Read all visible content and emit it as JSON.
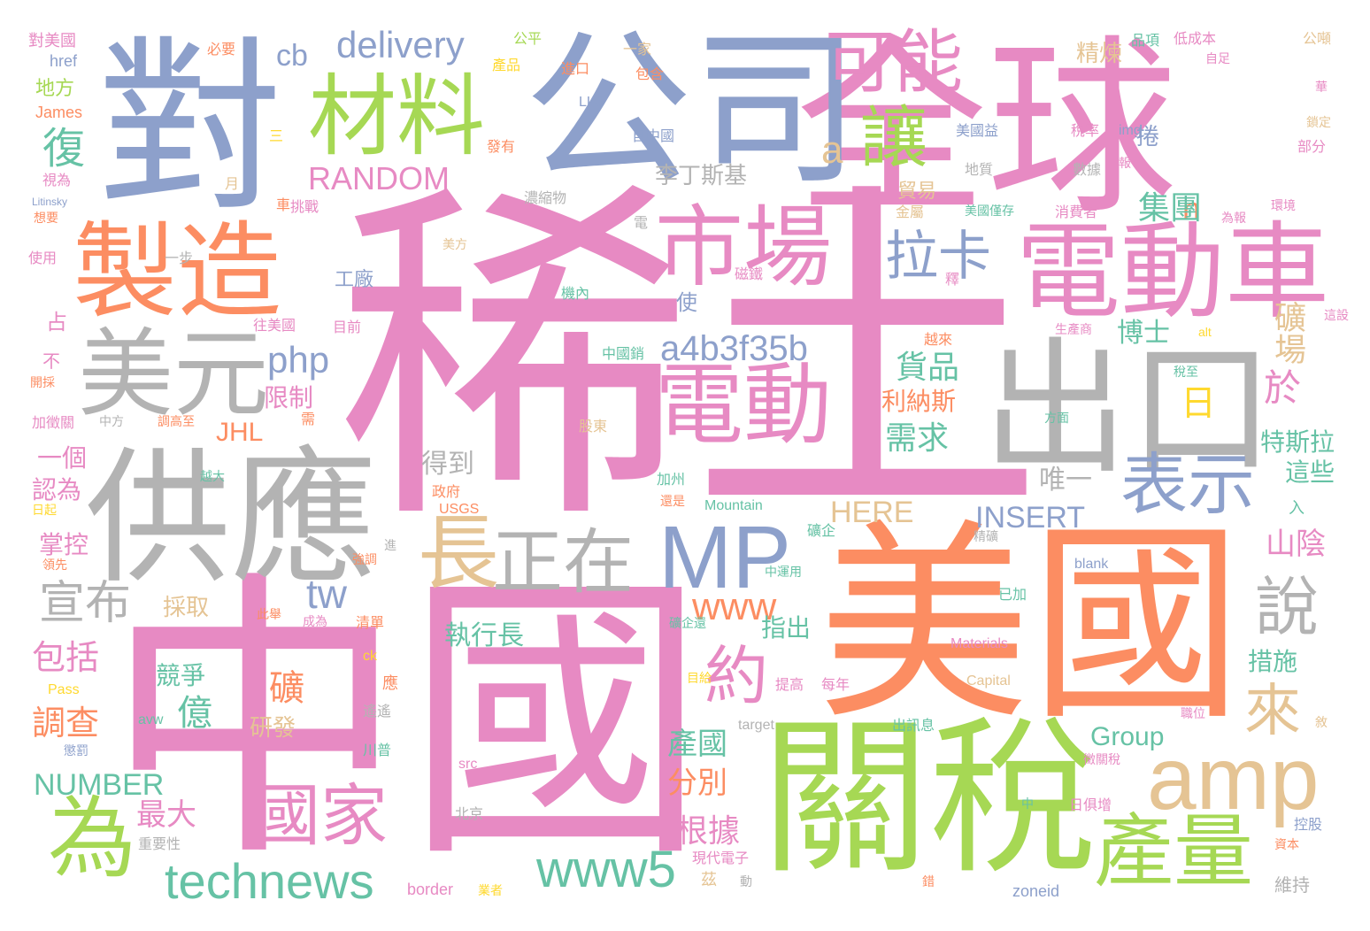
{
  "palette": {
    "pink": "#e78ac3",
    "orange": "#fc8d62",
    "green": "#a6d854",
    "blue": "#8da0cb",
    "gray": "#b3b3b3",
    "teal": "#66c2a5",
    "tan": "#e5c494",
    "yellow": "#ffd92f"
  },
  "words": [
    {
      "text": "稀土",
      "color": "#e78ac3"
    },
    {
      "text": "中國",
      "color": "#e78ac3"
    },
    {
      "text": "美國",
      "color": "#fc8d62"
    },
    {
      "text": "全球",
      "color": "#e78ac3"
    },
    {
      "text": "對",
      "color": "#8da0cb"
    },
    {
      "text": "公司",
      "color": "#8da0cb"
    },
    {
      "text": "供應",
      "color": "#b3b3b3"
    },
    {
      "text": "出口",
      "color": "#b3b3b3"
    },
    {
      "text": "關稅",
      "color": "#a6d854"
    },
    {
      "text": "製造",
      "color": "#fc8d62"
    },
    {
      "text": "電動車",
      "color": "#e78ac3"
    },
    {
      "text": "材料",
      "color": "#a6d854"
    },
    {
      "text": "美元",
      "color": "#b3b3b3"
    },
    {
      "text": "市場",
      "color": "#e78ac3"
    },
    {
      "text": "電動",
      "color": "#e78ac3"
    },
    {
      "text": "可能",
      "color": "#e78ac3"
    },
    {
      "text": "MP",
      "color": "#8da0cb"
    },
    {
      "text": "amp",
      "color": "#e5c494"
    },
    {
      "text": "產量",
      "color": "#a6d854"
    },
    {
      "text": "為",
      "color": "#a6d854"
    },
    {
      "text": "國家",
      "color": "#e78ac3"
    },
    {
      "text": "表示",
      "color": "#8da0cb"
    },
    {
      "text": "正在",
      "color": "#b3b3b3"
    },
    {
      "text": "長",
      "color": "#e5c494"
    },
    {
      "text": "technews",
      "color": "#66c2a5"
    },
    {
      "text": "www5",
      "color": "#66c2a5"
    },
    {
      "text": "約",
      "color": "#e78ac3"
    },
    {
      "text": "讓",
      "color": "#a6d854"
    },
    {
      "text": "拉卡",
      "color": "#8da0cb"
    },
    {
      "text": "delivery",
      "color": "#8da0cb"
    },
    {
      "text": "說",
      "color": "#b3b3b3"
    },
    {
      "text": "來",
      "color": "#e5c494"
    },
    {
      "text": "宣布",
      "color": "#b3b3b3"
    },
    {
      "text": "www",
      "color": "#fc8d62"
    },
    {
      "text": "a4b3f35b",
      "color": "#8da0cb"
    },
    {
      "text": "php",
      "color": "#8da0cb"
    },
    {
      "text": "RANDOM",
      "color": "#e78ac3"
    },
    {
      "text": "NUMBER",
      "color": "#66c2a5"
    },
    {
      "text": "INSERT",
      "color": "#8da0cb"
    },
    {
      "text": "HERE",
      "color": "#e5c494"
    },
    {
      "text": "tw",
      "color": "#8da0cb"
    },
    {
      "text": "a",
      "color": "#e5c494"
    },
    {
      "text": "cb",
      "color": "#8da0cb"
    },
    {
      "text": "復",
      "color": "#66c2a5"
    },
    {
      "text": "日",
      "color": "#ffd92f"
    },
    {
      "text": "n",
      "color": "#fc8d62"
    },
    {
      "text": "集團",
      "color": "#66c2a5"
    },
    {
      "text": "礦場",
      "color": "#e5c494"
    },
    {
      "text": "於",
      "color": "#e78ac3"
    },
    {
      "text": "貨品",
      "color": "#66c2a5"
    },
    {
      "text": "需求",
      "color": "#66c2a5"
    },
    {
      "text": "Group",
      "color": "#66c2a5"
    },
    {
      "text": "包括",
      "color": "#e78ac3"
    },
    {
      "text": "調查",
      "color": "#fc8d62"
    },
    {
      "text": "產國",
      "color": "#66c2a5"
    },
    {
      "text": "分別",
      "color": "#fc8d62"
    },
    {
      "text": "根據",
      "color": "#e78ac3"
    },
    {
      "text": "最大",
      "color": "#e78ac3"
    },
    {
      "text": "億",
      "color": "#66c2a5"
    },
    {
      "text": "礦",
      "color": "#fc8d62"
    },
    {
      "text": "JHL",
      "color": "#fc8d62"
    },
    {
      "text": "山陰",
      "color": "#e78ac3"
    },
    {
      "text": "特斯拉",
      "color": "#66c2a5"
    },
    {
      "text": "博士",
      "color": "#66c2a5"
    },
    {
      "text": "唯一",
      "color": "#b3b3b3"
    },
    {
      "text": "執行長",
      "color": "#66c2a5"
    },
    {
      "text": "得到",
      "color": "#b3b3b3"
    },
    {
      "text": "利納斯",
      "color": "#fc8d62"
    },
    {
      "text": "限制",
      "color": "#e78ac3"
    },
    {
      "text": "一個",
      "color": "#e78ac3"
    },
    {
      "text": "認為",
      "color": "#e78ac3"
    },
    {
      "text": "掌控",
      "color": "#e78ac3"
    },
    {
      "text": "採取",
      "color": "#e5c494"
    },
    {
      "text": "指出",
      "color": "#66c2a5"
    },
    {
      "text": "措施",
      "color": "#66c2a5"
    },
    {
      "text": "這些",
      "color": "#66c2a5"
    },
    {
      "text": "競爭",
      "color": "#66c2a5"
    },
    {
      "text": "研發",
      "color": "#e5c494"
    },
    {
      "text": "精煉",
      "color": "#e5c494"
    },
    {
      "text": "李丁斯基",
      "color": "#b3b3b3"
    },
    {
      "text": "工廠",
      "color": "#8da0cb"
    },
    {
      "text": "貿易",
      "color": "#e5c494"
    },
    {
      "text": "捲",
      "color": "#8da0cb"
    },
    {
      "text": "地方",
      "color": "#a6d854"
    },
    {
      "text": "James",
      "color": "#fc8d62"
    },
    {
      "text": "href",
      "color": "#8da0cb"
    },
    {
      "text": "對美國",
      "color": "#e78ac3"
    },
    {
      "text": "必要",
      "color": "#fc8d62"
    },
    {
      "text": "公平",
      "color": "#a6d854"
    },
    {
      "text": "產品",
      "color": "#ffd92f"
    },
    {
      "text": "進口",
      "color": "#fc8d62"
    },
    {
      "text": "一家",
      "color": "#e5c494"
    },
    {
      "text": "包含",
      "color": "#fc8d62"
    },
    {
      "text": "品項",
      "color": "#66c2a5"
    },
    {
      "text": "低成本",
      "color": "#e78ac3"
    },
    {
      "text": "公噸",
      "color": "#e5c494"
    },
    {
      "text": "自足",
      "color": "#e78ac3"
    },
    {
      "text": "LLC",
      "color": "#8da0cb"
    },
    {
      "text": "自中國",
      "color": "#8da0cb"
    },
    {
      "text": "發有",
      "color": "#fc8d62"
    },
    {
      "text": "美國益",
      "color": "#8da0cb"
    },
    {
      "text": "稅率",
      "color": "#e78ac3"
    },
    {
      "text": "img",
      "color": "#8da0cb"
    },
    {
      "text": "地質",
      "color": "#b3b3b3"
    },
    {
      "text": "數據",
      "color": "#b3b3b3"
    },
    {
      "text": "報",
      "color": "#e78ac3"
    },
    {
      "text": "部分",
      "color": "#e78ac3"
    },
    {
      "text": "鎖定",
      "color": "#e5c494"
    },
    {
      "text": "華",
      "color": "#e78ac3"
    },
    {
      "text": "環境",
      "color": "#e78ac3"
    },
    {
      "text": "為報",
      "color": "#e78ac3"
    },
    {
      "text": "濃縮物",
      "color": "#b3b3b3"
    },
    {
      "text": "挑戰",
      "color": "#e78ac3"
    },
    {
      "text": "美國僅存",
      "color": "#66c2a5"
    },
    {
      "text": "消費者",
      "color": "#e78ac3"
    },
    {
      "text": "金屬",
      "color": "#e5c494"
    },
    {
      "text": "美方",
      "color": "#e5c494"
    },
    {
      "text": "車",
      "color": "#fc8d62"
    },
    {
      "text": "電",
      "color": "#b3b3b3"
    },
    {
      "text": "一步",
      "color": "#b3b3b3"
    },
    {
      "text": "磁鐵",
      "color": "#e78ac3"
    },
    {
      "text": "釋",
      "color": "#e78ac3"
    },
    {
      "text": "機內",
      "color": "#66c2a5"
    },
    {
      "text": "使",
      "color": "#8da0cb"
    },
    {
      "text": "往美國",
      "color": "#e78ac3"
    },
    {
      "text": "目前",
      "color": "#e78ac3"
    },
    {
      "text": "中國銷",
      "color": "#66c2a5"
    },
    {
      "text": "越來",
      "color": "#fc8d62"
    },
    {
      "text": "生產商",
      "color": "#e78ac3"
    },
    {
      "text": "alt",
      "color": "#ffd92f"
    },
    {
      "text": "這設",
      "color": "#e78ac3"
    },
    {
      "text": "稅至",
      "color": "#66c2a5"
    },
    {
      "text": "方面",
      "color": "#66c2a5"
    },
    {
      "text": "股東",
      "color": "#e5c494"
    },
    {
      "text": "入",
      "color": "#66c2a5"
    },
    {
      "text": "加州",
      "color": "#66c2a5"
    },
    {
      "text": "Mountain",
      "color": "#66c2a5"
    },
    {
      "text": "還是",
      "color": "#fc8d62"
    },
    {
      "text": "USGS",
      "color": "#fc8d62"
    },
    {
      "text": "政府",
      "color": "#fc8d62"
    },
    {
      "text": "礦企",
      "color": "#66c2a5"
    },
    {
      "text": "精礦",
      "color": "#b3b3b3"
    },
    {
      "text": "blank",
      "color": "#8da0cb"
    },
    {
      "text": "中運用",
      "color": "#66c2a5"
    },
    {
      "text": "已加",
      "color": "#66c2a5"
    },
    {
      "text": "礦企還",
      "color": "#66c2a5"
    },
    {
      "text": "Materials",
      "color": "#e78ac3"
    },
    {
      "text": "Capital",
      "color": "#e5c494"
    },
    {
      "text": "目給",
      "color": "#ffd92f"
    },
    {
      "text": "提高",
      "color": "#e78ac3"
    },
    {
      "text": "每年",
      "color": "#e78ac3"
    },
    {
      "text": "target",
      "color": "#b3b3b3"
    },
    {
      "text": "出訊息",
      "color": "#66c2a5"
    },
    {
      "text": "職位",
      "color": "#e78ac3"
    },
    {
      "text": "徵關稅",
      "color": "#e78ac3"
    },
    {
      "text": "敘",
      "color": "#e5c494"
    },
    {
      "text": "src",
      "color": "#e78ac3"
    },
    {
      "text": "北京",
      "color": "#b3b3b3"
    },
    {
      "text": "中",
      "color": "#66c2a5"
    },
    {
      "text": "日俱增",
      "color": "#e78ac3"
    },
    {
      "text": "控股",
      "color": "#8da0cb"
    },
    {
      "text": "資本",
      "color": "#fc8d62"
    },
    {
      "text": "維持",
      "color": "#b3b3b3"
    },
    {
      "text": "zoneid",
      "color": "#8da0cb"
    },
    {
      "text": "border",
      "color": "#e78ac3"
    },
    {
      "text": "業者",
      "color": "#ffd92f"
    },
    {
      "text": "錯",
      "color": "#fc8d62"
    },
    {
      "text": "現代電子",
      "color": "#e78ac3"
    },
    {
      "text": "茲",
      "color": "#e5c494"
    },
    {
      "text": "動",
      "color": "#b3b3b3"
    },
    {
      "text": "重要性",
      "color": "#b3b3b3"
    },
    {
      "text": "avw",
      "color": "#66c2a5"
    },
    {
      "text": "懲罰",
      "color": "#8da0cb"
    },
    {
      "text": "川普",
      "color": "#66c2a5"
    },
    {
      "text": "遙遙",
      "color": "#b3b3b3"
    },
    {
      "text": "應",
      "color": "#fc8d62"
    },
    {
      "text": "ck",
      "color": "#ffd92f"
    },
    {
      "text": "Pass",
      "color": "#ffd92f"
    },
    {
      "text": "清單",
      "color": "#fc8d62"
    },
    {
      "text": "成為",
      "color": "#e78ac3"
    },
    {
      "text": "此舉",
      "color": "#fc8d62"
    },
    {
      "text": "強調",
      "color": "#fc8d62"
    },
    {
      "text": "進",
      "color": "#b3b3b3"
    },
    {
      "text": "領先",
      "color": "#fc8d62"
    },
    {
      "text": "日起",
      "color": "#ffd92f"
    },
    {
      "text": "越大",
      "color": "#66c2a5"
    },
    {
      "text": "加徵關",
      "color": "#e78ac3"
    },
    {
      "text": "中方",
      "color": "#b3b3b3"
    },
    {
      "text": "調高至",
      "color": "#fc8d62"
    },
    {
      "text": "需",
      "color": "#fc8d62"
    },
    {
      "text": "開採",
      "color": "#fc8d62"
    },
    {
      "text": "不",
      "color": "#e78ac3"
    },
    {
      "text": "占",
      "color": "#e78ac3"
    },
    {
      "text": "使用",
      "color": "#e78ac3"
    },
    {
      "text": "想要",
      "color": "#fc8d62"
    },
    {
      "text": "Litinsky",
      "color": "#8da0cb"
    },
    {
      "text": "視為",
      "color": "#e78ac3"
    },
    {
      "text": "月",
      "color": "#e5c494"
    },
    {
      "text": "三",
      "color": "#ffd92f"
    }
  ]
}
